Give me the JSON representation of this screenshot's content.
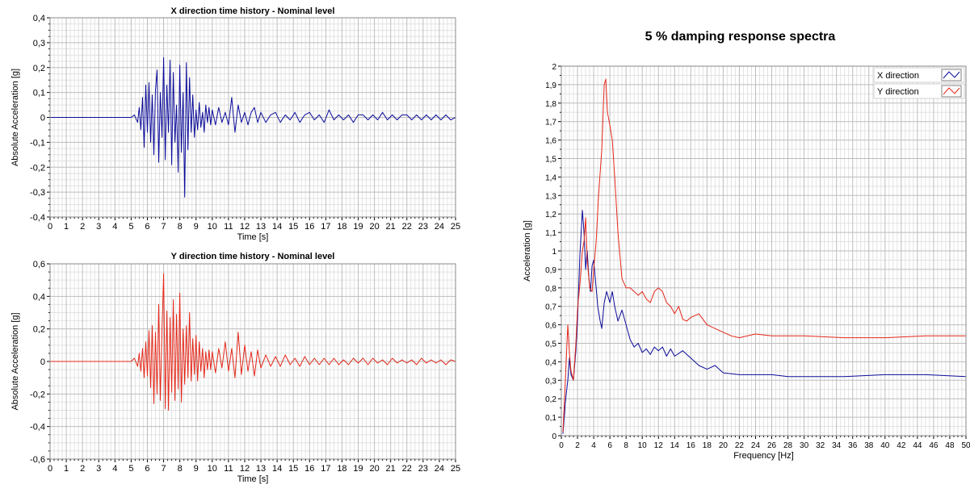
{
  "charts_title": "5 % damping response spectra",
  "colors": {
    "x_series": "#0b0b9a",
    "y_series": "#e4281a",
    "grid_major": "#bdbdbd",
    "grid_minor": "#e2e2e2",
    "frame": "#000000"
  },
  "chart_data": [
    {
      "type": "line",
      "title": "X direction time history - Nominal level",
      "xlabel": "Time [s]",
      "ylabel": "Absolute Acceleration [g]",
      "xlim": [
        0,
        25
      ],
      "ylim": [
        -0.4,
        0.4
      ],
      "xticks": [
        "0",
        "1",
        "2",
        "3",
        "4",
        "5",
        "6",
        "7",
        "8",
        "9",
        "10",
        "11",
        "12",
        "13",
        "14",
        "15",
        "16",
        "17",
        "18",
        "19",
        "20",
        "21",
        "22",
        "23",
        "24",
        "25"
      ],
      "yticks": [
        "-0,4",
        "-0,3",
        "-0,2",
        "-0,1",
        "0",
        "0,1",
        "0,2",
        "0,3",
        "0,4"
      ],
      "grid": true,
      "series": [
        {
          "x": [
            0,
            5.0,
            5.2,
            5.4,
            5.5,
            5.6,
            5.7,
            5.8,
            5.9,
            6.0,
            6.1,
            6.2,
            6.3,
            6.4,
            6.5,
            6.6,
            6.7,
            6.8,
            6.9,
            7.0,
            7.1,
            7.2,
            7.3,
            7.4,
            7.5,
            7.6,
            7.7,
            7.8,
            7.9,
            8.0,
            8.1,
            8.2,
            8.3,
            8.4,
            8.5,
            8.6,
            8.7,
            8.8,
            8.9,
            9.0,
            9.1,
            9.2,
            9.3,
            9.4,
            9.5,
            9.6,
            9.7,
            9.8,
            9.9,
            10.0,
            10.2,
            10.4,
            10.6,
            10.8,
            11.0,
            11.2,
            11.4,
            11.6,
            11.8,
            12.0,
            12.2,
            12.4,
            12.6,
            12.8,
            13.0,
            13.3,
            13.6,
            13.9,
            14.2,
            14.5,
            14.8,
            15.1,
            15.4,
            15.7,
            16.0,
            16.3,
            16.6,
            16.9,
            17.2,
            17.5,
            17.8,
            18.1,
            18.4,
            18.7,
            19.0,
            19.3,
            19.6,
            19.9,
            20.2,
            20.5,
            20.8,
            21.1,
            21.4,
            21.7,
            22.0,
            22.3,
            22.6,
            22.9,
            23.2,
            23.5,
            23.8,
            24.1,
            24.4,
            24.7,
            25.0
          ],
          "y": [
            0,
            0,
            0.01,
            -0.02,
            0.04,
            -0.05,
            0.08,
            -0.12,
            0.13,
            -0.06,
            0.14,
            -0.1,
            0.09,
            -0.15,
            0.11,
            0.19,
            -0.18,
            0.1,
            -0.08,
            0.24,
            -0.17,
            0.13,
            -0.06,
            0.23,
            -0.19,
            0.18,
            -0.1,
            0.05,
            -0.22,
            0.21,
            -0.14,
            0.1,
            -0.32,
            0.22,
            -0.13,
            0.16,
            -0.06,
            0.09,
            -0.08,
            0.03,
            -0.05,
            0.06,
            -0.04,
            0.02,
            -0.06,
            0.05,
            -0.02,
            0.04,
            -0.03,
            0.03,
            -0.03,
            0.04,
            -0.02,
            0.02,
            -0.03,
            0.08,
            -0.06,
            0.05,
            -0.02,
            0.02,
            -0.03,
            0.02,
            0.04,
            -0.02,
            0.02,
            -0.02,
            0.01,
            0.02,
            -0.02,
            0.01,
            -0.01,
            0.02,
            -0.02,
            0.01,
            0.02,
            -0.01,
            0.01,
            -0.02,
            0.03,
            -0.01,
            0.01,
            -0.01,
            0.01,
            -0.02,
            0.01,
            0.01,
            -0.01,
            0.01,
            -0.01,
            0.02,
            -0.01,
            0.01,
            -0.01,
            0.01,
            0.01,
            -0.01,
            0.01,
            -0.01,
            0.01,
            -0.01,
            0.01,
            -0.01,
            0.01,
            -0.01,
            0
          ]
        }
      ]
    },
    {
      "type": "line",
      "title": "Y direction time history - Nominal level",
      "xlabel": "Time [s]",
      "ylabel": "Absolute Acceleration [g]",
      "xlim": [
        0,
        25
      ],
      "ylim": [
        -0.6,
        0.6
      ],
      "xticks": [
        "0",
        "1",
        "2",
        "3",
        "4",
        "5",
        "6",
        "7",
        "8",
        "9",
        "10",
        "11",
        "12",
        "13",
        "14",
        "15",
        "16",
        "17",
        "18",
        "19",
        "20",
        "21",
        "22",
        "23",
        "24",
        "25"
      ],
      "yticks": [
        "-0,6",
        "-0,4",
        "-0,2",
        "0",
        "0,2",
        "0,4",
        "0,6"
      ],
      "grid": true,
      "series": [
        {
          "x": [
            0,
            5.0,
            5.2,
            5.4,
            5.5,
            5.6,
            5.7,
            5.8,
            5.9,
            6.0,
            6.1,
            6.2,
            6.3,
            6.4,
            6.5,
            6.6,
            6.7,
            6.8,
            6.9,
            7.0,
            7.1,
            7.2,
            7.3,
            7.4,
            7.5,
            7.6,
            7.7,
            7.8,
            7.9,
            8.0,
            8.1,
            8.2,
            8.3,
            8.4,
            8.5,
            8.6,
            8.7,
            8.8,
            8.9,
            9.0,
            9.1,
            9.2,
            9.3,
            9.4,
            9.5,
            9.6,
            9.7,
            9.8,
            9.9,
            10.0,
            10.2,
            10.4,
            10.6,
            10.8,
            11.0,
            11.2,
            11.4,
            11.6,
            11.8,
            12.0,
            12.2,
            12.4,
            12.6,
            12.8,
            13.0,
            13.3,
            13.6,
            13.9,
            14.2,
            14.5,
            14.8,
            15.1,
            15.4,
            15.7,
            16.0,
            16.3,
            16.6,
            16.9,
            17.2,
            17.5,
            17.8,
            18.1,
            18.4,
            18.7,
            19.0,
            19.3,
            19.6,
            19.9,
            20.2,
            20.5,
            20.8,
            21.1,
            21.4,
            21.7,
            22.0,
            22.3,
            22.6,
            22.9,
            23.2,
            23.5,
            23.8,
            24.1,
            24.4,
            24.7,
            25.0
          ],
          "y": [
            0,
            0,
            0.02,
            -0.03,
            0.05,
            -0.06,
            0.08,
            -0.1,
            0.12,
            -0.09,
            0.19,
            -0.16,
            0.22,
            -0.26,
            0.18,
            -0.2,
            0.35,
            -0.24,
            0.2,
            0.54,
            -0.29,
            0.31,
            -0.3,
            0.27,
            -0.19,
            0.38,
            -0.24,
            0.29,
            -0.17,
            0.42,
            -0.25,
            0.2,
            -0.14,
            0.22,
            -0.1,
            0.3,
            -0.12,
            0.14,
            -0.08,
            0.16,
            -0.12,
            0.12,
            -0.06,
            0.08,
            -0.1,
            0.06,
            -0.05,
            0.07,
            -0.05,
            0.06,
            -0.07,
            0.08,
            -0.04,
            0.12,
            -0.06,
            0.08,
            -0.1,
            0.18,
            -0.08,
            0.1,
            -0.06,
            0.06,
            -0.09,
            0.07,
            -0.04,
            0.04,
            -0.03,
            0.03,
            -0.03,
            0.04,
            -0.02,
            0.02,
            -0.03,
            0.03,
            -0.02,
            0.02,
            -0.02,
            0.02,
            -0.02,
            0.02,
            -0.02,
            0.01,
            -0.02,
            0.02,
            -0.01,
            0.02,
            -0.02,
            0.02,
            -0.01,
            0.01,
            -0.02,
            0.02,
            -0.01,
            0.01,
            -0.01,
            0.01,
            -0.02,
            0.02,
            -0.01,
            0.01,
            -0.01,
            0.01,
            -0.02,
            0.01,
            0
          ]
        }
      ]
    },
    {
      "type": "line",
      "title": "5 % damping response spectra",
      "xlabel": "Frequency [Hz]",
      "ylabel": "Acceleration [g]",
      "xlim": [
        0,
        50
      ],
      "ylim": [
        0,
        2
      ],
      "xticks": [
        "0",
        "2",
        "4",
        "6",
        "8",
        "10",
        "12",
        "14",
        "16",
        "18",
        "20",
        "22",
        "24",
        "26",
        "28",
        "30",
        "32",
        "34",
        "36",
        "38",
        "40",
        "42",
        "44",
        "46",
        "48",
        "50"
      ],
      "yticks": [
        "0",
        "0,1",
        "0,2",
        "0,3",
        "0,4",
        "0,5",
        "0,6",
        "0,7",
        "0,8",
        "0,9",
        "1",
        "1,1",
        "1,2",
        "1,3",
        "1,4",
        "1,5",
        "1,6",
        "1,7",
        "1,8",
        "1,9",
        "2"
      ],
      "grid": true,
      "legend": "top-right",
      "series": [
        {
          "name": "X direction",
          "x": [
            0.2,
            0.5,
            0.8,
            1.0,
            1.2,
            1.5,
            1.8,
            2.0,
            2.3,
            2.6,
            2.8,
            3.0,
            3.2,
            3.4,
            3.6,
            3.8,
            4.0,
            4.2,
            4.5,
            4.8,
            5.0,
            5.3,
            5.6,
            6.0,
            6.3,
            6.6,
            7.0,
            7.5,
            8.0,
            8.5,
            9.0,
            9.5,
            10.0,
            10.5,
            11.0,
            11.5,
            12.0,
            12.5,
            13.0,
            13.5,
            14.0,
            15.0,
            16.0,
            17.0,
            18.0,
            19.0,
            20.0,
            22.0,
            24.0,
            26.0,
            28.0,
            30.0,
            35.0,
            40.0,
            45.0,
            50.0
          ],
          "y": [
            0.01,
            0.18,
            0.3,
            0.42,
            0.33,
            0.3,
            0.46,
            0.62,
            0.98,
            1.22,
            1.1,
            0.9,
            1.0,
            0.85,
            0.78,
            0.92,
            0.95,
            0.85,
            0.7,
            0.62,
            0.58,
            0.72,
            0.78,
            0.72,
            0.78,
            0.7,
            0.62,
            0.68,
            0.6,
            0.52,
            0.48,
            0.5,
            0.45,
            0.47,
            0.44,
            0.48,
            0.46,
            0.48,
            0.43,
            0.47,
            0.43,
            0.46,
            0.42,
            0.38,
            0.36,
            0.38,
            0.34,
            0.33,
            0.33,
            0.33,
            0.32,
            0.32,
            0.32,
            0.33,
            0.33,
            0.32
          ]
        },
        {
          "name": "Y direction",
          "x": [
            0.2,
            0.5,
            0.8,
            1.0,
            1.2,
            1.5,
            1.8,
            2.0,
            2.3,
            2.6,
            2.8,
            3.0,
            3.2,
            3.5,
            3.8,
            4.0,
            4.3,
            4.6,
            5.0,
            5.3,
            5.5,
            5.7,
            6.0,
            6.3,
            6.6,
            7.0,
            7.5,
            8.0,
            8.5,
            9.0,
            9.5,
            10.0,
            10.5,
            11.0,
            11.5,
            12.0,
            12.5,
            13.0,
            13.5,
            14.0,
            14.5,
            15.0,
            15.5,
            16.0,
            17.0,
            18.0,
            19.0,
            20.0,
            21.0,
            22.0,
            23.0,
            24.0,
            26.0,
            28.0,
            30.0,
            35.0,
            40.0,
            45.0,
            50.0
          ],
          "y": [
            0.02,
            0.3,
            0.6,
            0.45,
            0.35,
            0.3,
            0.5,
            0.68,
            0.82,
            1.0,
            1.05,
            1.18,
            0.95,
            0.8,
            0.78,
            0.9,
            1.05,
            1.3,
            1.55,
            1.9,
            1.93,
            1.75,
            1.68,
            1.6,
            1.4,
            1.1,
            0.85,
            0.8,
            0.8,
            0.78,
            0.76,
            0.78,
            0.74,
            0.72,
            0.78,
            0.8,
            0.78,
            0.72,
            0.7,
            0.66,
            0.7,
            0.63,
            0.62,
            0.64,
            0.66,
            0.6,
            0.58,
            0.56,
            0.54,
            0.53,
            0.54,
            0.55,
            0.54,
            0.54,
            0.54,
            0.53,
            0.53,
            0.54,
            0.54
          ]
        }
      ]
    }
  ]
}
